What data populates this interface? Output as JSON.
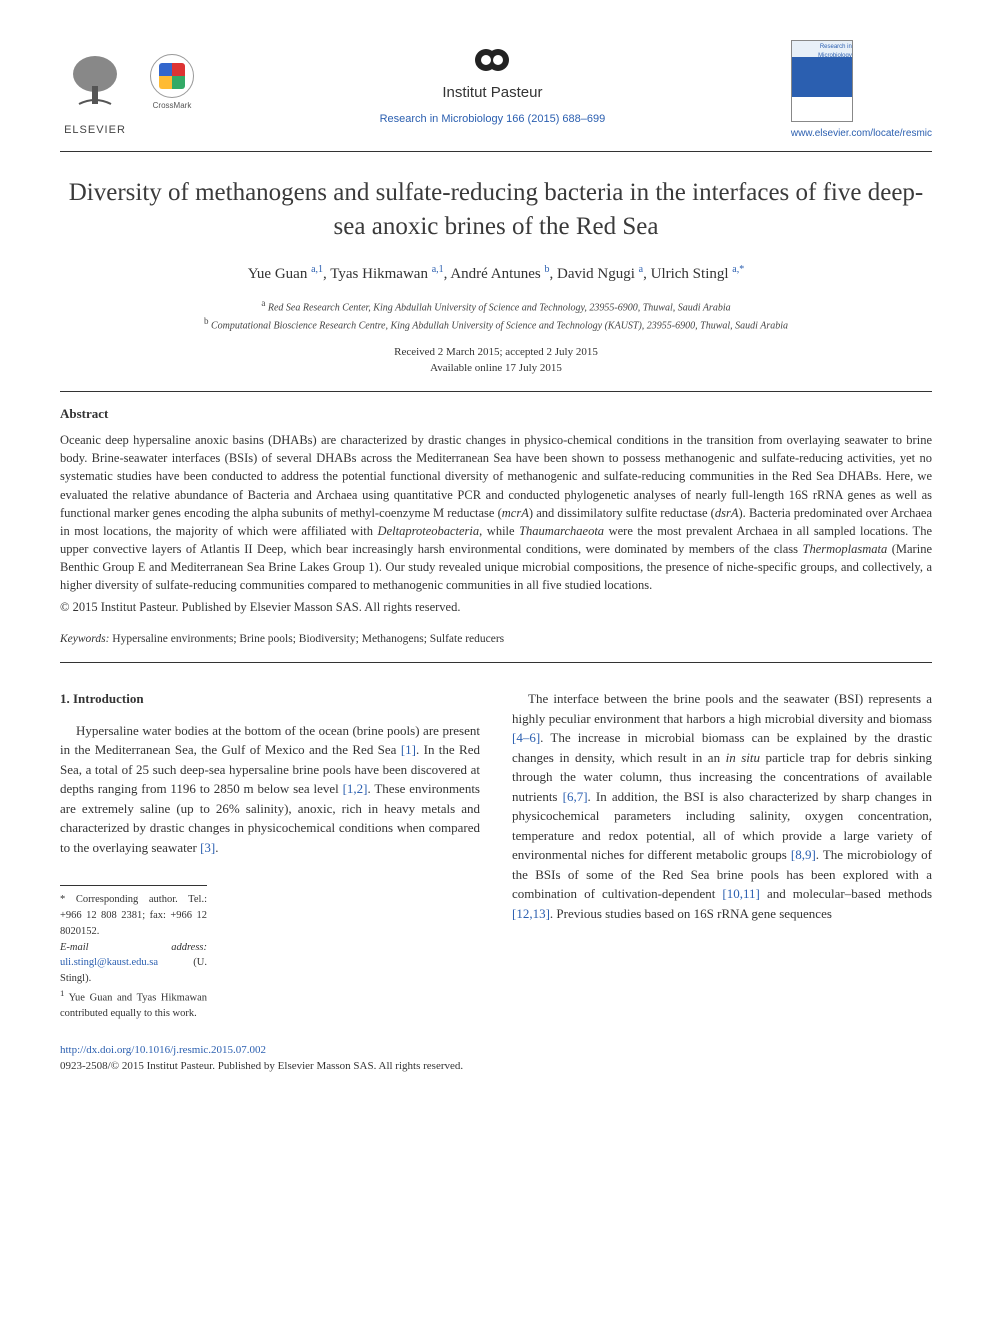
{
  "header": {
    "elsevier_label": "ELSEVIER",
    "crossmark_label": "CrossMark",
    "pasteur_label": "Institut Pasteur",
    "journal_citation": "Research in Microbiology 166 (2015) 688–699",
    "site_url": "www.elsevier.com/locate/resmic",
    "cover_title": "Research in Microbiology"
  },
  "article": {
    "title": "Diversity of methanogens and sulfate-reducing bacteria in the interfaces of five deep-sea anoxic brines of the Red Sea",
    "authors_html": "Yue Guan <sup class='aff'>a,1</sup>, Tyas Hikmawan <sup class='aff'>a,1</sup>, André Antunes <sup class='aff'>b</sup>, David Ngugi <sup class='aff'>a</sup>, Ulrich Stingl <sup class='aff'>a,*</sup>",
    "affiliations": {
      "a": "Red Sea Research Center, King Abdullah University of Science and Technology, 23955-6900, Thuwal, Saudi Arabia",
      "b": "Computational Bioscience Research Centre, King Abdullah University of Science and Technology (KAUST), 23955-6900, Thuwal, Saudi Arabia"
    },
    "dates_line1": "Received 2 March 2015; accepted 2 July 2015",
    "dates_line2": "Available online 17 July 2015"
  },
  "abstract": {
    "heading": "Abstract",
    "body_html": "Oceanic deep hypersaline anoxic basins (DHABs) are characterized by drastic changes in physico-chemical conditions in the transition from overlaying seawater to brine body. Brine-seawater interfaces (BSIs) of several DHABs across the Mediterranean Sea have been shown to possess methanogenic and sulfate-reducing activities, yet no systematic studies have been conducted to address the potential functional diversity of methanogenic and sulfate-reducing communities in the Red Sea DHABs. Here, we evaluated the relative abundance of Bacteria and Archaea using quantitative PCR and conducted phylogenetic analyses of nearly full-length 16S rRNA genes as well as functional marker genes encoding the alpha subunits of methyl-coenzyme M reductase (<em>mcrA</em>) and dissimilatory sulfite reductase (<em>dsrA</em>). Bacteria predominated over Archaea in most locations, the majority of which were affiliated with <em>Deltaproteobacteria</em>, while <em>Thaumarchaeota</em> were the most prevalent Archaea in all sampled locations. The upper convective layers of Atlantis II Deep, which bear increasingly harsh environmental conditions, were dominated by members of the class <em>Thermoplasmata</em> (Marine Benthic Group E and Mediterranean Sea Brine Lakes Group 1). Our study revealed unique microbial compositions, the presence of niche-specific groups, and collectively, a higher diversity of sulfate-reducing communities compared to methanogenic communities in all five studied locations.",
    "copyright": "© 2015 Institut Pasteur. Published by Elsevier Masson SAS. All rights reserved."
  },
  "keywords": {
    "label": "Keywords:",
    "list": "Hypersaline environments; Brine pools; Biodiversity; Methanogens; Sulfate reducers"
  },
  "intro": {
    "heading": "1. Introduction",
    "col1_html": "Hypersaline water bodies at the bottom of the ocean (brine pools) are present in the Mediterranean Sea, the Gulf of Mexico and the Red Sea <span class='ref'>[1]</span>. In the Red Sea, a total of 25 such deep-sea hypersaline brine pools have been discovered at depths ranging from 1196 to 2850 m below sea level <span class='ref'>[1,2]</span>. These environments are extremely saline (up to 26% salinity), anoxic, rich in heavy metals and characterized by drastic changes in physicochemical conditions when compared to the overlaying seawater <span class='ref'>[3]</span>.",
    "col2_html": "The interface between the brine pools and the seawater (BSI) represents a highly peculiar environment that harbors a high microbial diversity and biomass <span class='ref'>[4–6]</span>. The increase in microbial biomass can be explained by the drastic changes in density, which result in an <em>in situ</em> particle trap for debris sinking through the water column, thus increasing the concentrations of available nutrients <span class='ref'>[6,7]</span>. In addition, the BSI is also characterized by sharp changes in physicochemical parameters including salinity, oxygen concentration, temperature and redox potential, all of which provide a large variety of environmental niches for different metabolic groups <span class='ref'>[8,9]</span>. The microbiology of the BSIs of some of the Red Sea brine pools has been explored with a combination of cultivation-dependent <span class='ref'>[10,11]</span> and molecular–based methods <span class='ref'>[12,13]</span>. Previous studies based on 16S rRNA gene sequences"
  },
  "footnotes": {
    "corr": "* Corresponding author. Tel.: +966 12 808 2381; fax: +966 12 8020152.",
    "email_label": "E-mail address:",
    "email": "uli.stingl@kaust.edu.sa",
    "email_person": "(U. Stingl).",
    "eq": "Yue Guan and Tyas Hikmawan contributed equally to this work.",
    "eq_marker": "1"
  },
  "footer": {
    "doi": "http://dx.doi.org/10.1016/j.resmic.2015.07.002",
    "issn_line": "0923-2508/© 2015 Institut Pasteur. Published by Elsevier Masson SAS. All rights reserved."
  },
  "colors": {
    "link": "#2b5fb0",
    "text": "#333333",
    "rule": "#333333"
  }
}
